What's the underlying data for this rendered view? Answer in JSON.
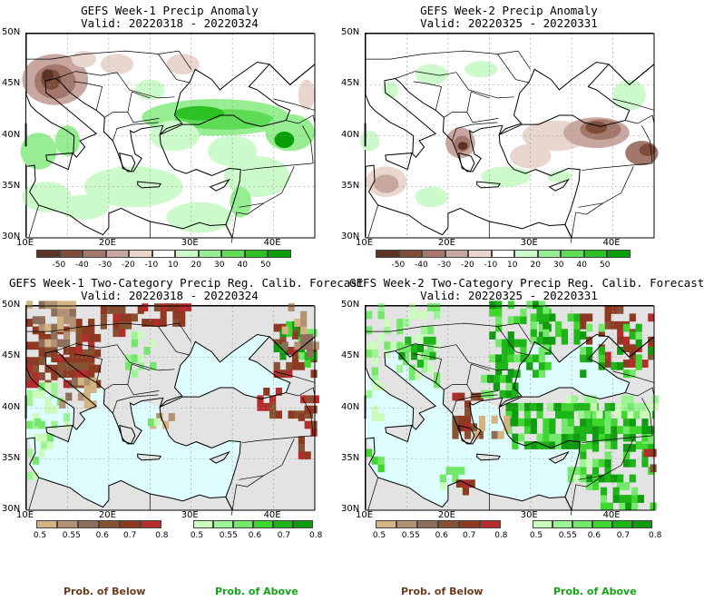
{
  "panels": [
    {
      "title": "GEFS Week-1 Precip Anomaly",
      "valid": "Valid: 20220318 - 20220324"
    },
    {
      "title": "GEFS Week-2 Precip Anomaly",
      "valid": "Valid: 20220325 - 20220331"
    },
    {
      "title": "GEFS Week-1 Two-Category Precip Reg. Calib. Forecast",
      "valid": "Valid: 20220318 - 20220324"
    },
    {
      "title": "GEFS Week-2 Two-Category Precip Reg. Calib. Forecast",
      "valid": "Valid: 20220325 - 20220331"
    }
  ],
  "lat_labels": [
    "50N",
    "45N",
    "40N",
    "35N",
    "30N"
  ],
  "lon_labels": [
    "10E",
    "20E",
    "30E",
    "40E"
  ],
  "anomaly_colorbar": {
    "labels": [
      "-50",
      "-40",
      "-30",
      "-20",
      "-10",
      "10",
      "20",
      "30",
      "40",
      "50"
    ],
    "colors": [
      "#5b3324",
      "#7d4c3a",
      "#a3776b",
      "#c7a79f",
      "#e9d6cf",
      "#ffffff",
      "#cdfacb",
      "#97ee92",
      "#5fdc55",
      "#2cc224",
      "#079e06"
    ]
  },
  "below_colorbar": {
    "labels": [
      "0.5",
      "0.55",
      "0.6",
      "0.7",
      "0.8"
    ],
    "colors": [
      "#d4b383",
      "#b39274",
      "#8d6e5c",
      "#865232",
      "#8e3a22",
      "#b42c2c"
    ]
  },
  "above_colorbar": {
    "labels": [
      "0.5",
      "0.55",
      "0.6",
      "0.7",
      "0.8"
    ],
    "colors": [
      "#ccfbbe",
      "#9df494",
      "#74e86a",
      "#3fd62f",
      "#1eb519",
      "#119b11"
    ]
  },
  "legend": {
    "below": "Prob. of Below",
    "above": "Prob. of Above"
  },
  "colors": {
    "ocean_prob": "#ddfdfe",
    "land_nodata": "#e3e3e3",
    "grid": "#9a9a9a"
  }
}
